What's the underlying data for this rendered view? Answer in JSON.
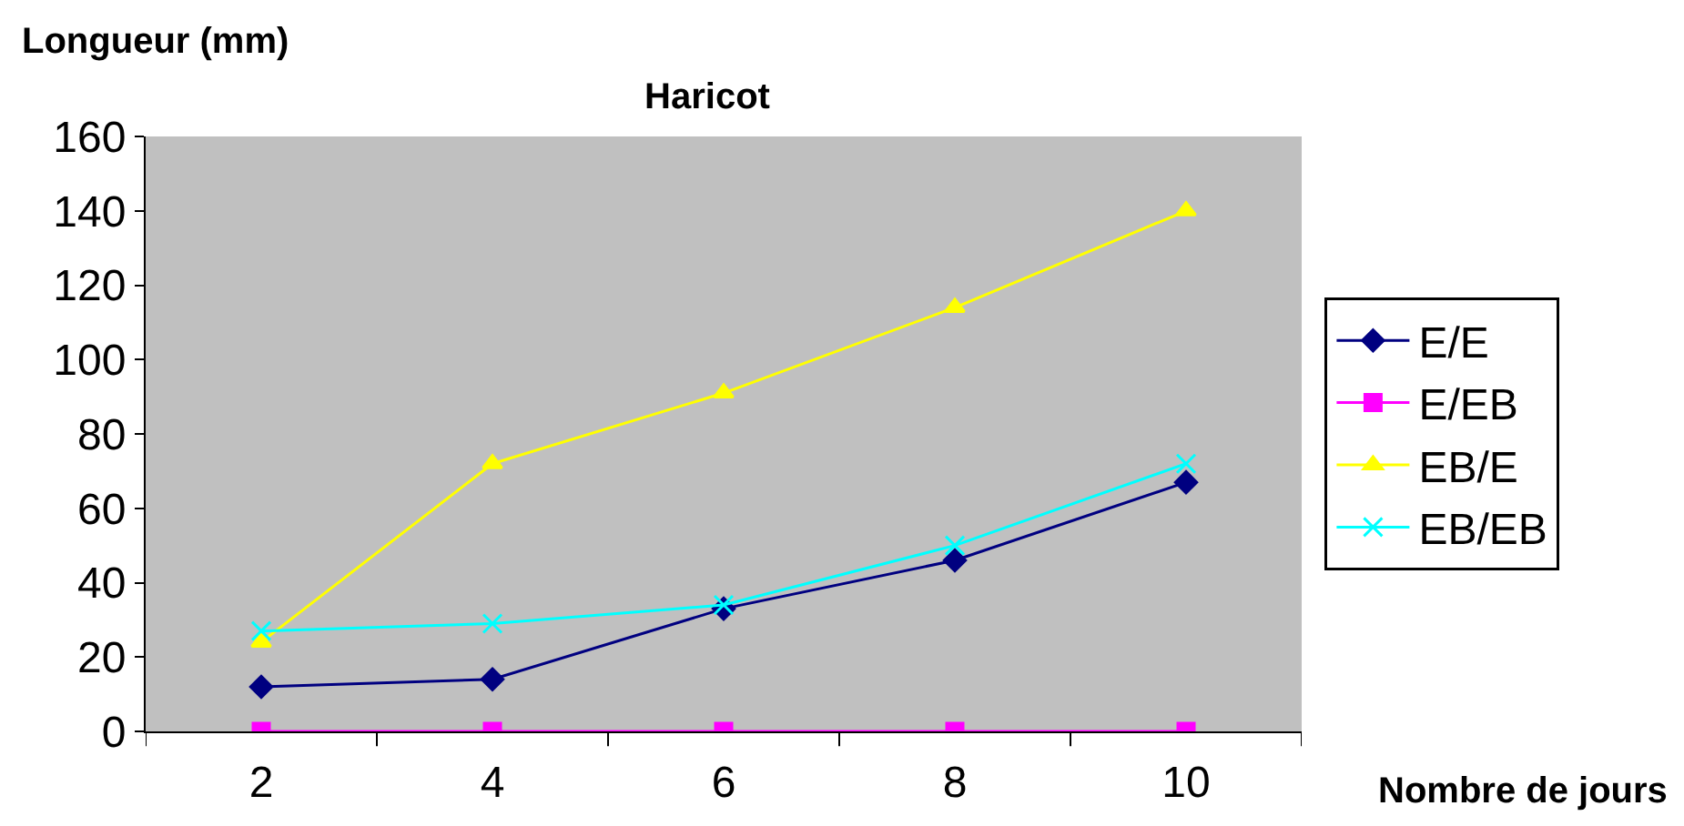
{
  "chart_data": {
    "type": "line",
    "title": "Haricot",
    "xlabel": "Nombre de jours",
    "ylabel": "Longueur (mm)",
    "categories": [
      "2",
      "4",
      "6",
      "8",
      "10"
    ],
    "series": [
      {
        "name": "E/E",
        "color": "#000080",
        "marker": "diamond",
        "values": [
          12,
          14,
          33,
          46,
          67
        ]
      },
      {
        "name": "E/EB",
        "color": "#ff00ff",
        "marker": "square",
        "values": [
          0,
          0,
          0,
          0,
          0
        ]
      },
      {
        "name": "EB/E",
        "color": "#ffff00",
        "marker": "triangle",
        "values": [
          24,
          72,
          91,
          114,
          140
        ]
      },
      {
        "name": "EB/EB",
        "color": "#00ffff",
        "marker": "cross",
        "values": [
          27,
          29,
          34,
          50,
          72
        ]
      }
    ],
    "ylim": [
      0,
      160
    ],
    "yticks": [
      0,
      20,
      40,
      60,
      80,
      100,
      120,
      140,
      160
    ],
    "grid": false,
    "legend": "right"
  }
}
